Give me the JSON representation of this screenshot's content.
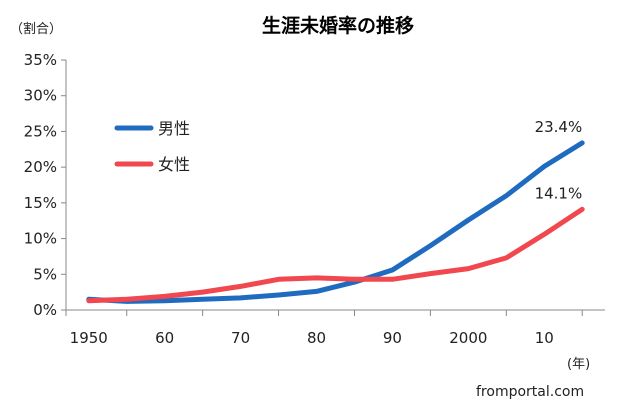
{
  "chart_data": {
    "type": "line",
    "title": "生涯未婚率の推移",
    "ylabel": "（割合）",
    "xlabel": "(年)",
    "y_tick_labels": [
      "0%",
      "5%",
      "10%",
      "15%",
      "20%",
      "25%",
      "30%",
      "35%"
    ],
    "ylim": [
      0,
      35
    ],
    "xlim": [
      1947,
      2018
    ],
    "x_ticks": [
      {
        "value": 1950,
        "label": "1950"
      },
      {
        "value": 1960,
        "label": "60"
      },
      {
        "value": 1970,
        "label": "70"
      },
      {
        "value": 1980,
        "label": "80"
      },
      {
        "value": 1990,
        "label": "90"
      },
      {
        "value": 2000,
        "label": "2000"
      },
      {
        "value": 2010,
        "label": "10"
      }
    ],
    "legend_position": "upper-left inside plot",
    "grid": false,
    "series": [
      {
        "name": "男性",
        "color": "#1f6bc0",
        "x": [
          1950,
          1955,
          1960,
          1965,
          1970,
          1975,
          1980,
          1985,
          1990,
          1995,
          2000,
          2005,
          2010,
          2015
        ],
        "values": [
          1.5,
          1.2,
          1.3,
          1.5,
          1.7,
          2.1,
          2.6,
          3.9,
          5.6,
          9.0,
          12.6,
          16.0,
          20.1,
          23.4
        ],
        "end_label": "23.4%"
      },
      {
        "name": "女性",
        "color": "#f0484e",
        "x": [
          1950,
          1955,
          1960,
          1965,
          1970,
          1975,
          1980,
          1985,
          1990,
          1995,
          2000,
          2005,
          2010,
          2015
        ],
        "values": [
          1.3,
          1.5,
          1.9,
          2.5,
          3.3,
          4.3,
          4.5,
          4.3,
          4.3,
          5.1,
          5.8,
          7.3,
          10.6,
          14.1
        ],
        "end_label": "14.1%"
      }
    ]
  },
  "footer": {
    "source": "fromportal.com"
  }
}
